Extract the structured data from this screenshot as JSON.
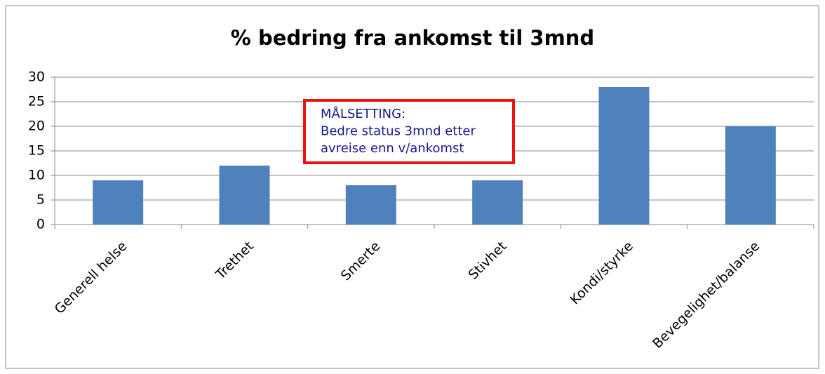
{
  "chart_data": {
    "type": "bar",
    "title": "% bedring fra ankomst til 3mnd",
    "categories": [
      "Generell helse",
      "Trethet",
      "Smerte",
      "Stivhet",
      "Kondi/styrke",
      "Bevegelighet/balanse"
    ],
    "values": [
      9,
      12,
      8,
      9,
      28,
      20
    ],
    "color": "#4f81bd",
    "ylim": [
      0,
      30
    ],
    "yticks": [
      0,
      5,
      10,
      15,
      20,
      25,
      30
    ],
    "grid": true,
    "annotation": [
      "MÅLSETTING:",
      "Bedre status 3mnd etter",
      "avreise enn v/ankomst"
    ]
  }
}
